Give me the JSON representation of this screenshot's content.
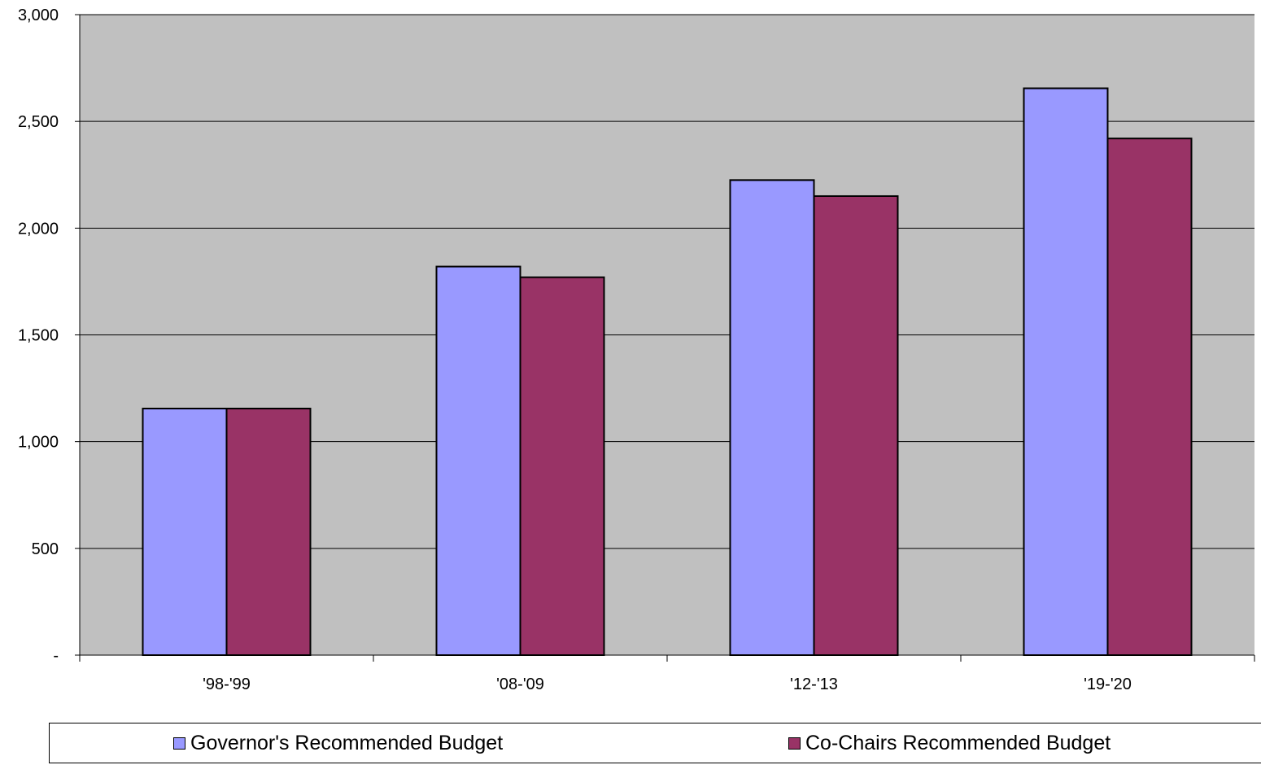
{
  "chart_data": {
    "type": "bar",
    "categories": [
      "'98-'99",
      "'08-'09",
      "'12-'13",
      "'19-'20"
    ],
    "series": [
      {
        "name": "Governor's Recommended Budget",
        "values": [
          1155,
          1820,
          2225,
          2655
        ],
        "color": "#9999ff"
      },
      {
        "name": "Co-Chairs Recommended Budget",
        "values": [
          1155,
          1770,
          2150,
          2420
        ],
        "color": "#993366"
      }
    ],
    "ylim": [
      0,
      3000
    ],
    "yticks": [
      0,
      500,
      1000,
      1500,
      2000,
      2500,
      3000
    ],
    "ytick_labels": [
      "-",
      "500",
      "1,000",
      "1,500",
      "2,000",
      "2,500",
      "3,000"
    ],
    "grid": true,
    "plot_background": "#c0c0c0",
    "gridline_color": "#000000",
    "legend_position": "bottom"
  }
}
